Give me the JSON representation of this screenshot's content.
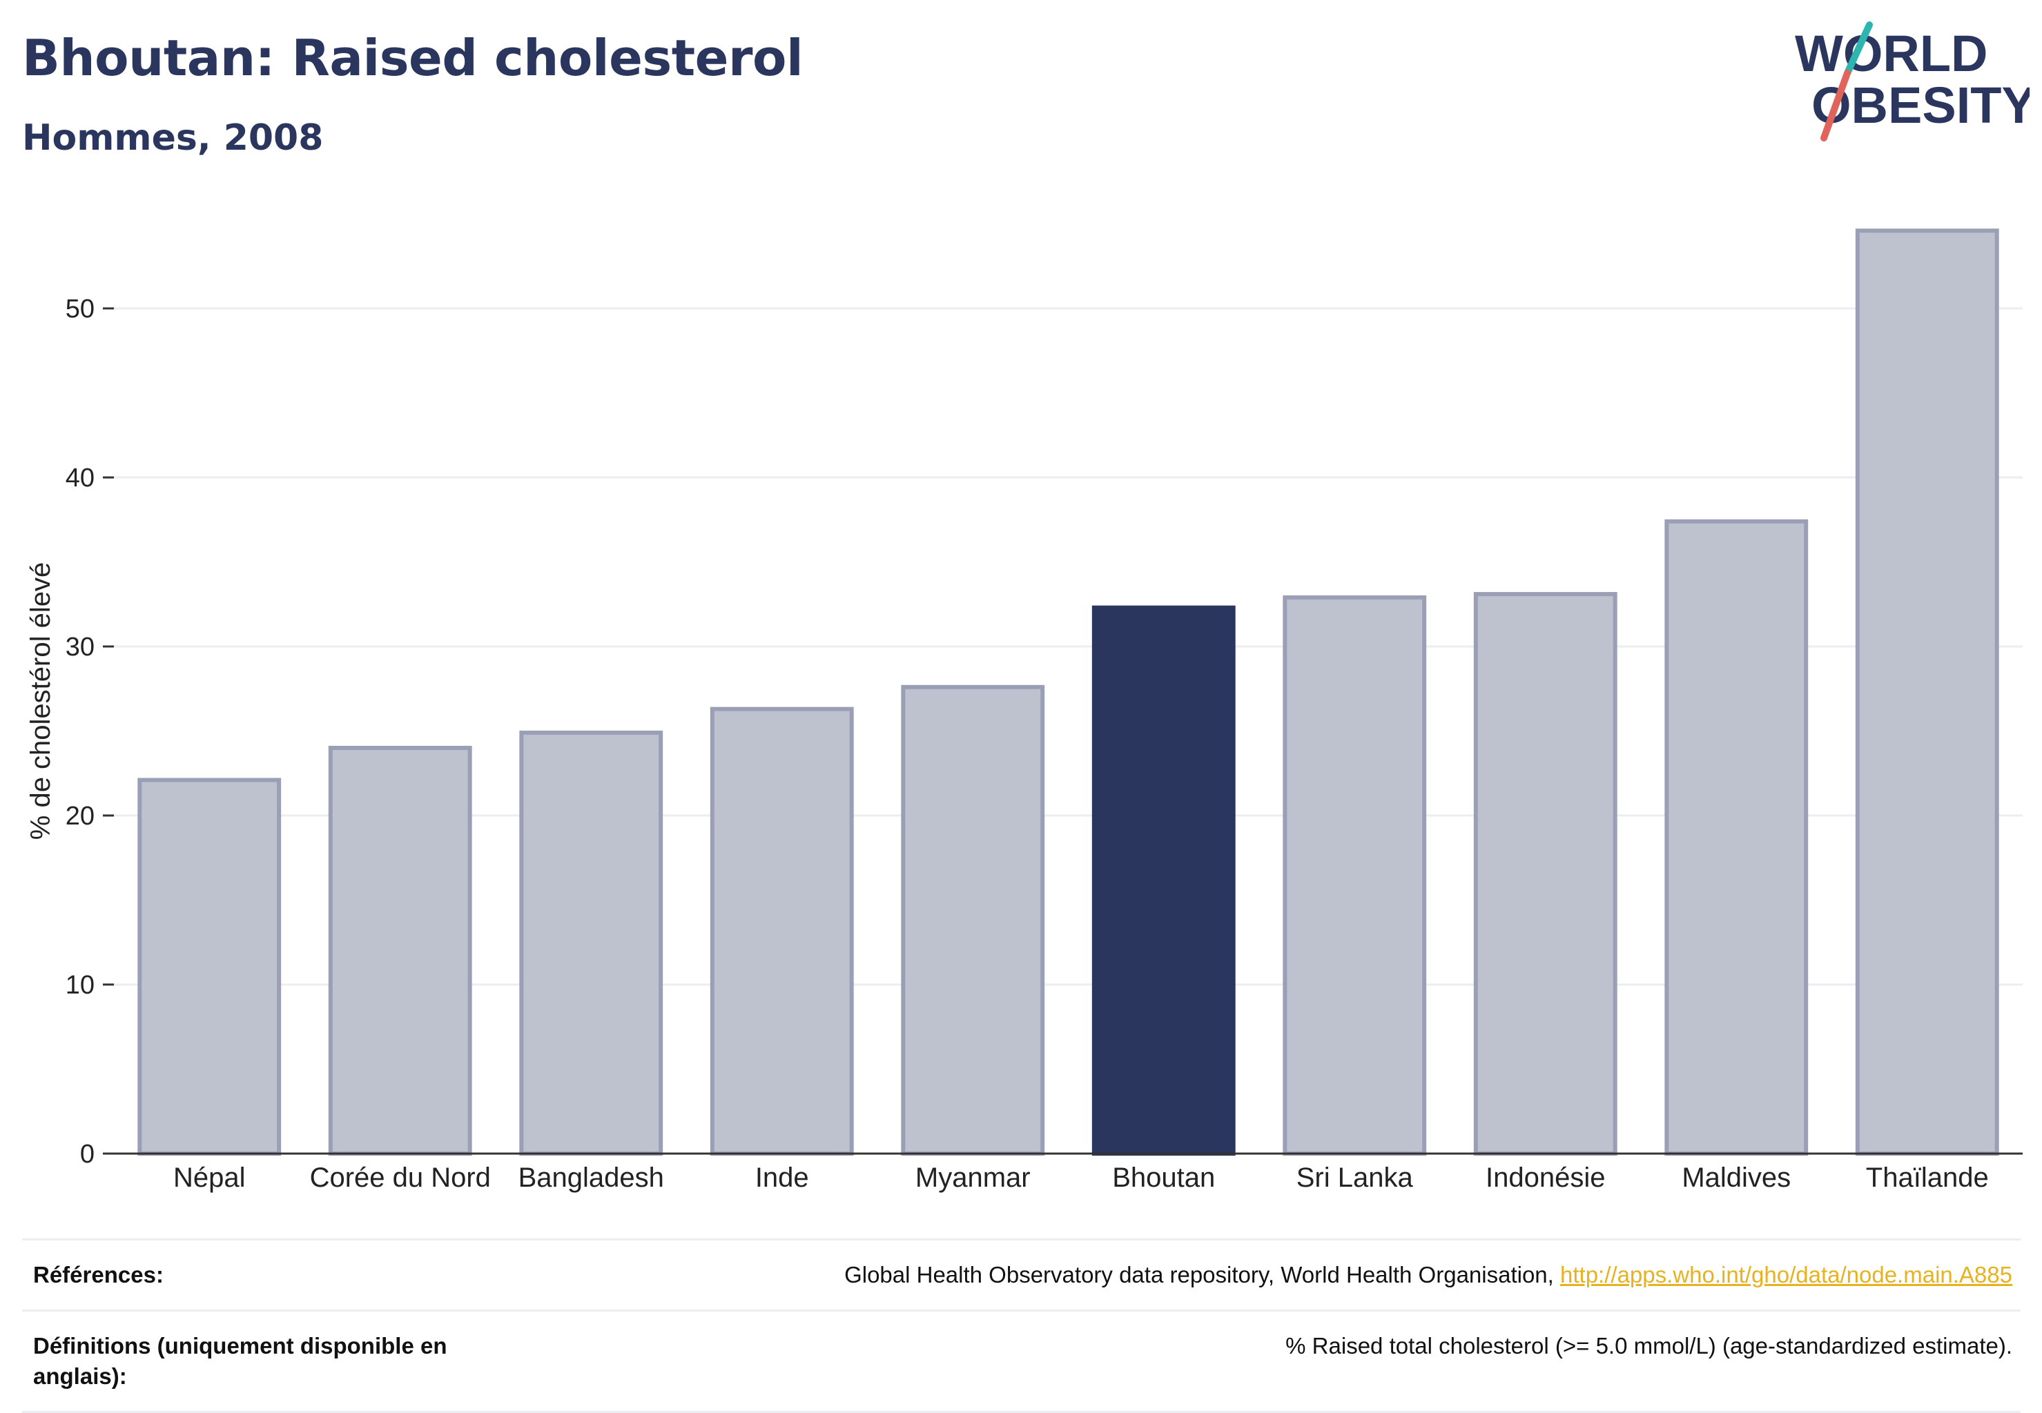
{
  "header": {
    "title": "Bhoutan: Raised cholesterol",
    "subtitle": "Hommes, 2008"
  },
  "logo": {
    "line1": "WORLD",
    "line2": "OBESITY",
    "colors": {
      "text": "#2b365f",
      "slash_teal": "#2fb5b0",
      "slash_red": "#e0645b"
    }
  },
  "chart_data": {
    "type": "bar",
    "categories": [
      "Népal",
      "Corée du Nord",
      "Bangladesh",
      "Inde",
      "Myanmar",
      "Bhoutan",
      "Sri Lanka",
      "Indonésie",
      "Maldives",
      "Thaïlande"
    ],
    "values": [
      22.1,
      24.0,
      24.9,
      26.3,
      27.6,
      32.3,
      32.9,
      33.1,
      37.4,
      54.6
    ],
    "highlight": "Bhoutan",
    "ylabel": "% de cholestérol élevé",
    "xlabel": "",
    "ylim": [
      0,
      56
    ],
    "yticks": [
      0,
      10,
      20,
      30,
      40,
      50
    ],
    "grid": true,
    "colors": {
      "highlight": "#2b365f",
      "default_fill": "#bec2cf",
      "default_stroke": "#9a9fb6",
      "grid": "#ebedf0",
      "axis": "#333333"
    }
  },
  "footer": {
    "references_label": "Références:",
    "references_text": "Global Health Observatory data repository, World Health Organisation, ",
    "references_link": "http://apps.who.int/gho/data/node.main.A885",
    "definitions_label": "Définitions (uniquement disponible en anglais):",
    "definitions_text": "% Raised total cholesterol (>= 5.0 mmol/L) (age-standardized estimate)."
  }
}
